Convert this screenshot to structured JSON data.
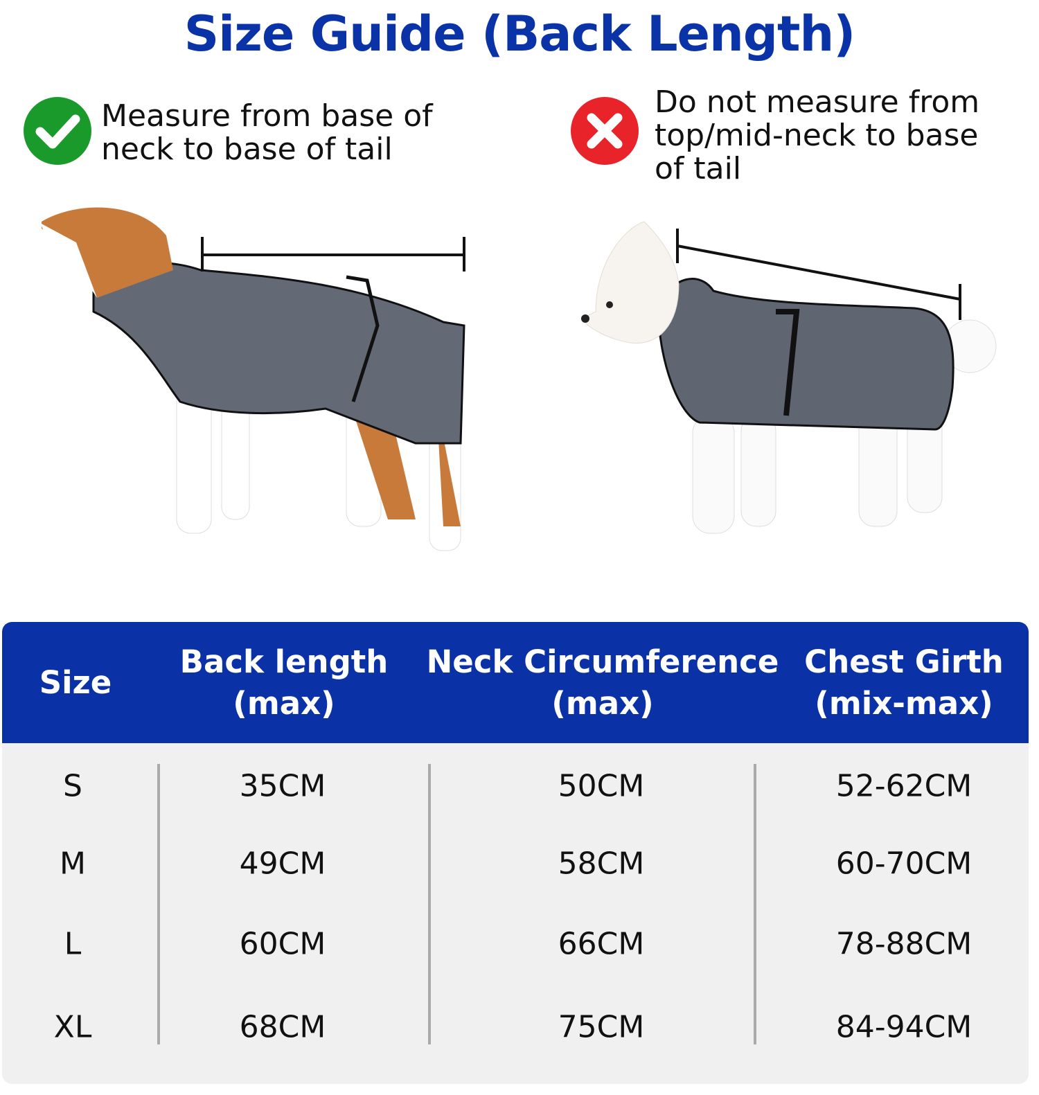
{
  "title": "Size Guide (Back Length)",
  "correct": {
    "icon": "check-circle-icon",
    "color": "#1a9a2a",
    "lines": [
      "Measure from base of",
      "neck to base of tail"
    ]
  },
  "incorrect": {
    "icon": "x-circle-icon",
    "color": "#e8232a",
    "lines": [
      "Do not measure from",
      "top/mid-neck to base",
      "of tail"
    ]
  },
  "table": {
    "header_color": "#0a31a6",
    "headers": [
      {
        "line1": "Size",
        "line2": ""
      },
      {
        "line1": "Back length",
        "line2": "(max)"
      },
      {
        "line1": "Neck Circumference",
        "line2": "(max)"
      },
      {
        "line1": "Chest Girth",
        "line2": "(mix-max)"
      }
    ],
    "rows": [
      [
        "S",
        "35CM",
        "50CM",
        "52-62CM"
      ],
      [
        "M",
        "49CM",
        "58CM",
        "60-70CM"
      ],
      [
        "L",
        "60CM",
        "66CM",
        "78-88CM"
      ],
      [
        "XL",
        "68CM",
        "75CM",
        "84-94CM"
      ]
    ]
  }
}
